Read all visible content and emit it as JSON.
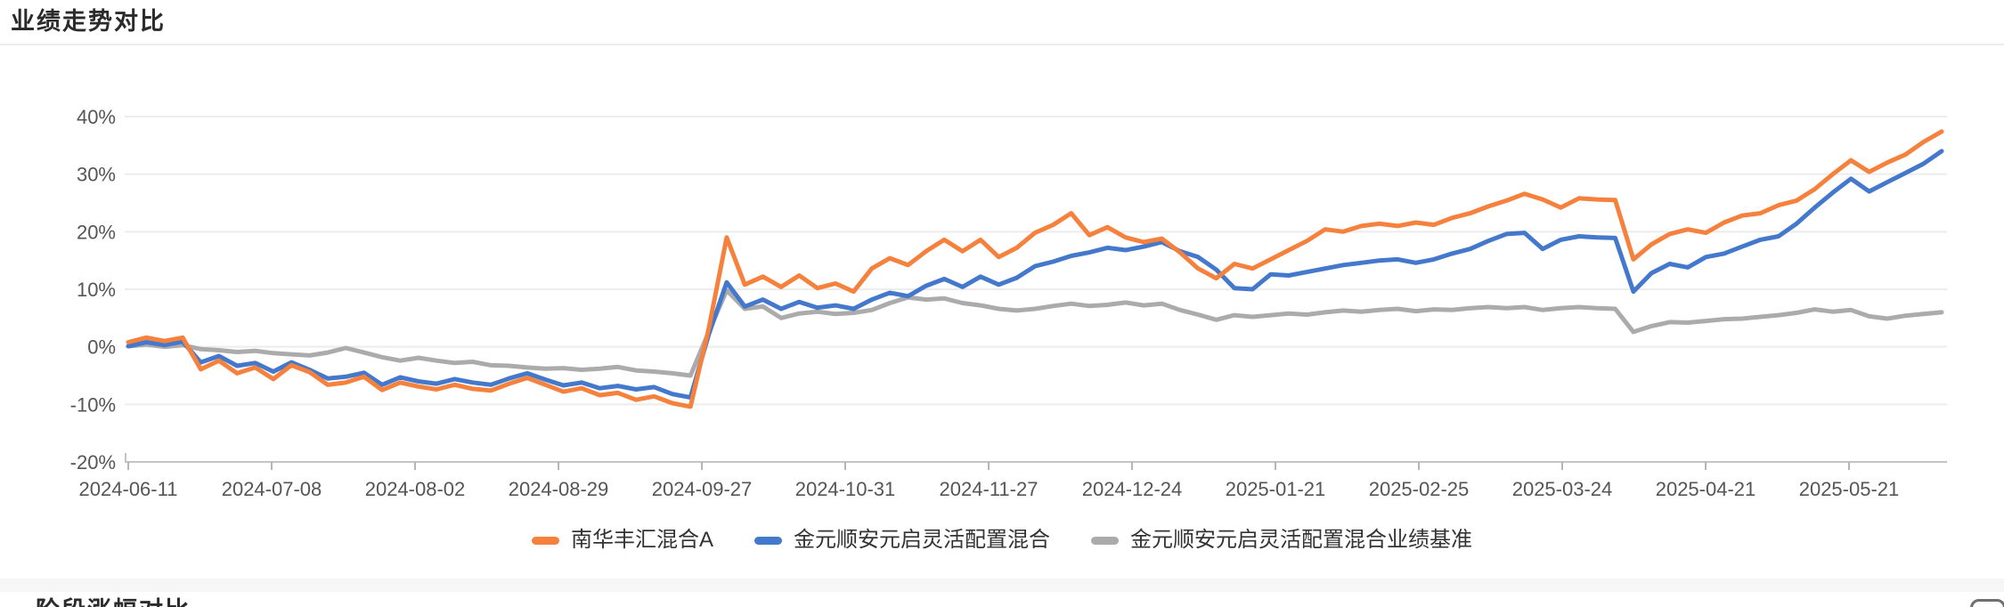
{
  "header": {
    "title": "业绩走势对比"
  },
  "bottom_section": {
    "partial_title": "阶段涨幅对比"
  },
  "colors": {
    "series_orange": "#f5813d",
    "series_blue": "#4478cc",
    "series_gray": "#ababab",
    "gridline": "#ececec",
    "axis_line": "#c4c4c4",
    "tick_mark": "#b5b5b5",
    "axis_text": "#555555",
    "title_text": "#2b2b2b"
  },
  "chart_data": {
    "type": "line",
    "title": "业绩走势对比",
    "xlabel": "",
    "ylabel": "",
    "grid": true,
    "legend_position": "bottom",
    "ylim": [
      -20,
      40
    ],
    "y_tick_step": 10,
    "y_tick_labels": [
      "40%",
      "30%",
      "20%",
      "10%",
      "0%",
      "-10%",
      "-20%"
    ],
    "x_tick_labels": [
      "2024-06-11",
      "2024-07-08",
      "2024-08-02",
      "2024-08-29",
      "2024-09-27",
      "2024-10-31",
      "2024-11-27",
      "2024-12-24",
      "2025-01-21",
      "2025-02-25",
      "2025-03-24",
      "2025-04-21",
      "2025-05-21"
    ],
    "x_range": [
      "2024-06-11",
      "2025-06-06"
    ],
    "unit": "percent",
    "series": [
      {
        "name": "南华丰汇混合A",
        "color": "#f5813d",
        "values": [
          0.8,
          1.6,
          1.0,
          1.6,
          -3.9,
          -2.4,
          -4.6,
          -3.6,
          -5.6,
          -3.2,
          -4.4,
          -6.6,
          -6.2,
          -5.2,
          -7.5,
          -6.2,
          -6.9,
          -7.4,
          -6.6,
          -7.3,
          -7.6,
          -6.4,
          -5.4,
          -6.6,
          -7.8,
          -7.2,
          -8.4,
          -8.0,
          -9.2,
          -8.6,
          -9.8,
          -10.4,
          3.0,
          19.0,
          10.8,
          12.2,
          10.4,
          12.4,
          10.2,
          11.0,
          9.6,
          13.6,
          15.4,
          14.2,
          16.6,
          18.6,
          16.6,
          18.6,
          15.6,
          17.2,
          19.8,
          21.2,
          23.2,
          19.4,
          20.8,
          19.0,
          18.2,
          18.8,
          16.4,
          13.6,
          11.9,
          14.4,
          13.6,
          15.2,
          16.8,
          18.4,
          20.4,
          20.0,
          21.0,
          21.4,
          21.0,
          21.6,
          21.2,
          22.4,
          23.2,
          24.4,
          25.4,
          26.6,
          25.6,
          24.2,
          25.8,
          25.6,
          25.5,
          15.2,
          17.8,
          19.6,
          20.4,
          19.8,
          21.6,
          22.8,
          23.2,
          24.6,
          25.4,
          27.4,
          30.0,
          32.4,
          30.4,
          32.0,
          33.4,
          35.6,
          37.4
        ]
      },
      {
        "name": "金元顺安元启灵活配置混合",
        "color": "#4478cc",
        "values": [
          0.1,
          0.8,
          0.3,
          0.9,
          -2.7,
          -1.6,
          -3.3,
          -2.8,
          -4.3,
          -2.7,
          -4.0,
          -5.5,
          -5.2,
          -4.5,
          -6.6,
          -5.3,
          -6.0,
          -6.4,
          -5.6,
          -6.2,
          -6.6,
          -5.5,
          -4.6,
          -5.7,
          -6.7,
          -6.2,
          -7.2,
          -6.8,
          -7.4,
          -7.0,
          -8.2,
          -8.8,
          2.0,
          11.2,
          7.0,
          8.2,
          6.6,
          7.8,
          6.8,
          7.2,
          6.6,
          8.2,
          9.4,
          8.8,
          10.6,
          11.8,
          10.4,
          12.2,
          10.8,
          12.0,
          14.0,
          14.8,
          15.8,
          16.4,
          17.2,
          16.8,
          17.4,
          18.2,
          16.6,
          15.6,
          13.4,
          10.2,
          10.0,
          12.6,
          12.4,
          13.0,
          13.6,
          14.2,
          14.6,
          15.0,
          15.2,
          14.6,
          15.2,
          16.2,
          17.0,
          18.4,
          19.6,
          19.8,
          17.0,
          18.6,
          19.2,
          19.0,
          18.9,
          9.6,
          12.8,
          14.4,
          13.8,
          15.6,
          16.2,
          17.4,
          18.6,
          19.2,
          21.4,
          24.2,
          26.8,
          29.2,
          27.0,
          28.6,
          30.2,
          31.8,
          34.0
        ]
      },
      {
        "name": "金元顺安元启灵活配置混合业绩基准",
        "color": "#ababab",
        "values": [
          0.1,
          0.4,
          0.0,
          0.3,
          -0.4,
          -0.6,
          -0.9,
          -0.7,
          -1.1,
          -1.3,
          -1.5,
          -1.0,
          -0.2,
          -1.0,
          -1.8,
          -2.4,
          -1.9,
          -2.4,
          -2.8,
          -2.6,
          -3.2,
          -3.3,
          -3.6,
          -3.8,
          -3.7,
          -4.0,
          -3.8,
          -3.5,
          -4.1,
          -4.3,
          -4.6,
          -5.0,
          2.5,
          9.8,
          6.6,
          7.0,
          5.0,
          5.8,
          6.1,
          5.7,
          5.9,
          6.4,
          7.6,
          8.6,
          8.2,
          8.4,
          7.6,
          7.2,
          6.6,
          6.3,
          6.6,
          7.1,
          7.5,
          7.1,
          7.3,
          7.7,
          7.2,
          7.5,
          6.4,
          5.6,
          4.7,
          5.5,
          5.2,
          5.5,
          5.8,
          5.6,
          6.0,
          6.3,
          6.1,
          6.4,
          6.6,
          6.2,
          6.5,
          6.4,
          6.7,
          6.9,
          6.7,
          6.9,
          6.4,
          6.7,
          6.9,
          6.7,
          6.6,
          2.6,
          3.6,
          4.3,
          4.2,
          4.5,
          4.8,
          4.9,
          5.2,
          5.5,
          5.9,
          6.5,
          6.1,
          6.4,
          5.3,
          4.9,
          5.4,
          5.7,
          6.0
        ]
      }
    ]
  }
}
